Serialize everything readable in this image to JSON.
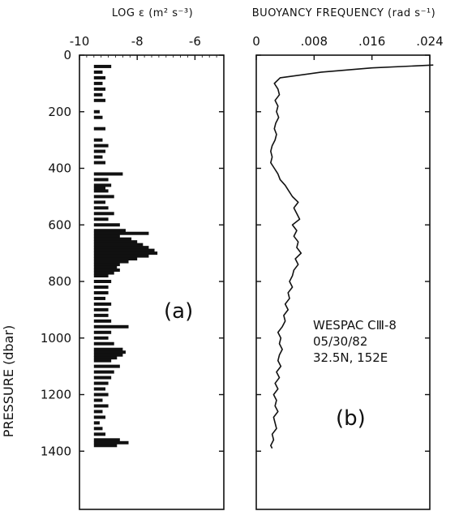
{
  "chart_data": [
    {
      "panel_label": "(a)",
      "type": "bar",
      "title": "LOG ε (m² s⁻³)",
      "xlabel_top": "LOG ε (m² s⁻³)",
      "ylabel": "PRESSURE (dbar)",
      "xlim": [
        -10,
        -5
      ],
      "ylim": [
        0,
        1600
      ],
      "x_ticks": [
        "-10",
        "-8",
        "-6"
      ],
      "x_tick_values": [
        -10,
        -8,
        -6
      ],
      "y_ticks": [
        "0",
        "200",
        "400",
        "600",
        "800",
        "1000",
        "1200",
        "1400"
      ],
      "y_tick_values": [
        0,
        200,
        400,
        600,
        800,
        1000,
        1200,
        1400
      ],
      "bar_base": -9.5,
      "pressure": [
        40,
        60,
        80,
        100,
        120,
        140,
        160,
        200,
        220,
        260,
        300,
        320,
        340,
        360,
        380,
        420,
        440,
        460,
        470,
        480,
        500,
        520,
        540,
        560,
        580,
        600,
        620,
        630,
        640,
        650,
        660,
        670,
        680,
        690,
        700,
        710,
        720,
        730,
        740,
        750,
        760,
        770,
        780,
        800,
        820,
        840,
        860,
        880,
        900,
        920,
        940,
        960,
        980,
        1000,
        1020,
        1040,
        1050,
        1060,
        1070,
        1080,
        1100,
        1120,
        1140,
        1160,
        1180,
        1200,
        1220,
        1240,
        1260,
        1280,
        1300,
        1320,
        1340,
        1360,
        1370,
        1380
      ],
      "log_epsilon": [
        -8.9,
        -9.2,
        -9.1,
        -9.2,
        -9.1,
        -9.2,
        -9.1,
        -9.3,
        -9.2,
        -9.1,
        -9.2,
        -9.0,
        -9.1,
        -9.2,
        -9.1,
        -8.5,
        -9.0,
        -8.9,
        -9.1,
        -9.0,
        -8.8,
        -9.1,
        -9.0,
        -8.8,
        -9.0,
        -8.6,
        -8.4,
        -7.6,
        -8.6,
        -8.2,
        -8.0,
        -7.8,
        -7.6,
        -7.4,
        -7.3,
        -7.6,
        -8.0,
        -8.3,
        -8.6,
        -8.7,
        -8.6,
        -8.8,
        -9.0,
        -8.9,
        -9.0,
        -9.0,
        -9.1,
        -8.9,
        -9.0,
        -9.0,
        -8.9,
        -8.3,
        -8.9,
        -9.0,
        -8.8,
        -8.5,
        -8.4,
        -8.5,
        -8.7,
        -8.9,
        -8.6,
        -8.8,
        -8.9,
        -9.0,
        -9.1,
        -9.0,
        -9.2,
        -9.0,
        -9.2,
        -9.1,
        -9.3,
        -9.2,
        -9.1,
        -8.6,
        -8.3,
        -8.7
      ],
      "grid": false
    },
    {
      "panel_label": "(b)",
      "type": "line",
      "title": "BUOYANCY FREQUENCY (rad s⁻¹)",
      "xlim": [
        0,
        0.024
      ],
      "ylim": [
        0,
        1600
      ],
      "x_ticks": [
        "0",
        ".008",
        ".016",
        ".024"
      ],
      "x_tick_values": [
        0,
        0.008,
        0.016,
        0.024
      ],
      "y_tick_values": [
        0,
        200,
        400,
        600,
        800,
        1000,
        1200,
        1400
      ],
      "pressure": [
        35,
        45,
        60,
        80,
        100,
        120,
        140,
        160,
        180,
        200,
        220,
        240,
        260,
        280,
        300,
        320,
        340,
        360,
        380,
        400,
        420,
        440,
        460,
        480,
        500,
        520,
        540,
        560,
        580,
        600,
        620,
        640,
        660,
        680,
        700,
        720,
        740,
        760,
        780,
        800,
        820,
        840,
        860,
        880,
        900,
        920,
        940,
        960,
        980,
        1000,
        1020,
        1040,
        1060,
        1080,
        1100,
        1120,
        1140,
        1160,
        1180,
        1200,
        1220,
        1240,
        1260,
        1280,
        1300,
        1320,
        1340,
        1360,
        1380,
        1390
      ],
      "frequency": [
        0.0245,
        0.016,
        0.009,
        0.0033,
        0.0025,
        0.003,
        0.0032,
        0.0026,
        0.003,
        0.0028,
        0.0031,
        0.0027,
        0.0025,
        0.0028,
        0.0026,
        0.0022,
        0.002,
        0.0022,
        0.002,
        0.0025,
        0.003,
        0.0033,
        0.004,
        0.0045,
        0.005,
        0.0058,
        0.0052,
        0.0056,
        0.006,
        0.005,
        0.0056,
        0.0052,
        0.0058,
        0.0056,
        0.0062,
        0.0054,
        0.0058,
        0.0052,
        0.005,
        0.0046,
        0.005,
        0.0044,
        0.0046,
        0.004,
        0.0044,
        0.0038,
        0.004,
        0.0036,
        0.003,
        0.0034,
        0.0032,
        0.0036,
        0.0032,
        0.003,
        0.0034,
        0.0028,
        0.0032,
        0.0026,
        0.003,
        0.0024,
        0.0028,
        0.0026,
        0.003,
        0.0024,
        0.0026,
        0.0028,
        0.0022,
        0.0024,
        0.002,
        0.0022
      ],
      "grid": false
    }
  ],
  "annotation": {
    "line1": "WESPAC CⅢ-8",
    "line2": "05/30/82",
    "line3": "32.5N, 152E"
  },
  "labels": {
    "ylabel": "PRESSURE (dbar)",
    "a_title": "LOG ε (m² s⁻³)",
    "b_title": "BUOYANCY FREQUENCY (rad s⁻¹)",
    "panel_a": "(a)",
    "panel_b": "(b)"
  }
}
